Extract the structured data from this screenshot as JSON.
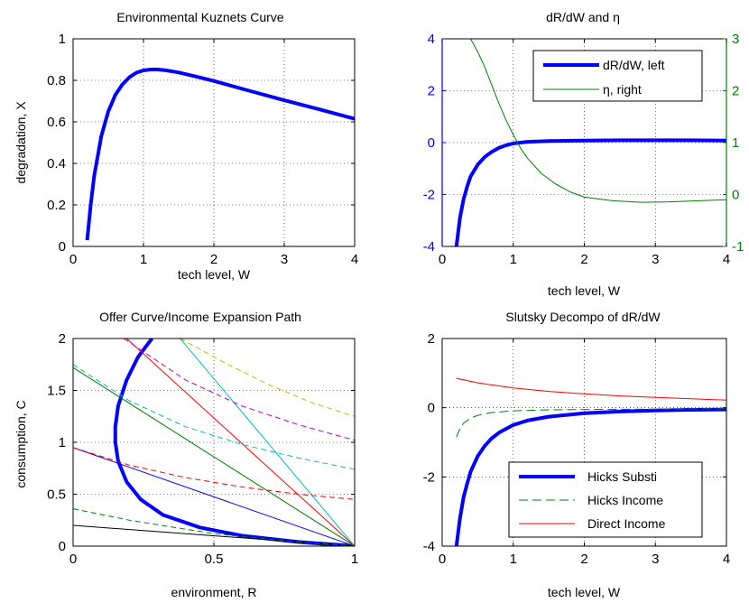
{
  "chart_data": [
    {
      "type": "line",
      "title": "Environmental Kuznets Curve",
      "xlabel": "tech level, W",
      "ylabel": "degradation, X",
      "xlim": [
        0,
        4
      ],
      "ylim": [
        0,
        1
      ],
      "xticks": [
        "0",
        "1",
        "2",
        "3",
        "4"
      ],
      "yticks": [
        "0",
        "0.2",
        "0.4",
        "0.6",
        "0.8",
        "1"
      ],
      "grid": true,
      "series": [
        {
          "color": "#0000ff",
          "width": 4,
          "dash": "",
          "x": [
            0.2,
            0.25,
            0.3,
            0.4,
            0.5,
            0.6,
            0.7,
            0.8,
            0.9,
            1.0,
            1.1,
            1.2,
            1.3,
            1.5,
            1.7,
            2.0,
            2.5,
            3.0,
            3.5,
            4.0
          ],
          "y": [
            0.03,
            0.2,
            0.34,
            0.53,
            0.65,
            0.73,
            0.78,
            0.815,
            0.837,
            0.848,
            0.852,
            0.852,
            0.849,
            0.838,
            0.822,
            0.797,
            0.75,
            0.704,
            0.66,
            0.615
          ]
        }
      ]
    },
    {
      "type": "line",
      "title": "dR/dW and η",
      "xlabel": "tech level, W",
      "xlim": [
        0,
        4
      ],
      "ylim": [
        -4,
        4
      ],
      "y2lim": [
        -1,
        3
      ],
      "xticks": [
        "0",
        "1",
        "2",
        "3",
        "4"
      ],
      "yticks": [
        "-4",
        "-2",
        "0",
        "2",
        "4"
      ],
      "y2ticks": [
        "-1",
        "0",
        "1",
        "2",
        "3"
      ],
      "y1color": "#0000ff",
      "y2color": "#008000",
      "grid": true,
      "legend": {
        "position": "top-right",
        "entries": [
          {
            "label": "dR/dW, left",
            "color": "#0000ff",
            "width": 4,
            "dash": ""
          },
          {
            "label": "η, right",
            "color": "#008000",
            "width": 1,
            "dash": ""
          }
        ]
      },
      "series": [
        {
          "name": "dR/dW, left",
          "axis": "left",
          "color": "#0000ff",
          "width": 4,
          "dash": "",
          "x": [
            0.2,
            0.25,
            0.3,
            0.35,
            0.4,
            0.5,
            0.6,
            0.7,
            0.8,
            0.9,
            1.0,
            1.2,
            1.5,
            2.0,
            2.5,
            3.0,
            3.5,
            4.0
          ],
          "y": [
            -4.0,
            -2.9,
            -2.2,
            -1.7,
            -1.3,
            -0.85,
            -0.55,
            -0.35,
            -0.2,
            -0.1,
            -0.03,
            0.03,
            0.06,
            0.08,
            0.09,
            0.09,
            0.09,
            0.08
          ]
        },
        {
          "name": "η, right",
          "axis": "right",
          "color": "#008000",
          "width": 1,
          "dash": "",
          "x": [
            0.4,
            0.5,
            0.6,
            0.7,
            0.8,
            0.9,
            1.0,
            1.1,
            1.2,
            1.4,
            1.6,
            1.8,
            2.0,
            2.4,
            2.8,
            3.2,
            3.6,
            4.0
          ],
          "y": [
            3.0,
            2.75,
            2.45,
            2.1,
            1.75,
            1.43,
            1.15,
            0.9,
            0.7,
            0.4,
            0.2,
            0.05,
            -0.05,
            -0.12,
            -0.15,
            -0.14,
            -0.12,
            -0.1
          ]
        }
      ]
    },
    {
      "type": "line",
      "title": "Offer Curve/Income Expansion Path",
      "xlabel": "environment, R",
      "ylabel": "consumption, C",
      "xlim": [
        0,
        1
      ],
      "ylim": [
        0,
        2
      ],
      "xticks": [
        "0",
        "0.5",
        "1"
      ],
      "yticks": [
        "0",
        "0.5",
        "1",
        "1.5",
        "2"
      ],
      "grid": true,
      "series": [
        {
          "color": "#0000ff",
          "width": 4,
          "dash": "",
          "x": [
            1.0,
            0.8,
            0.6,
            0.45,
            0.32,
            0.24,
            0.19,
            0.16,
            0.15,
            0.15,
            0.16,
            0.19,
            0.23,
            0.28
          ],
          "y": [
            0.0,
            0.04,
            0.1,
            0.18,
            0.3,
            0.45,
            0.62,
            0.82,
            1.0,
            1.15,
            1.35,
            1.6,
            1.82,
            2.0
          ]
        },
        {
          "color": "#000000",
          "width": 1,
          "dash": "",
          "x": [
            0,
            1
          ],
          "y": [
            0.2,
            0
          ]
        },
        {
          "color": "#0000ff",
          "width": 1,
          "dash": "",
          "x": [
            0,
            1
          ],
          "y": [
            0.95,
            0
          ]
        },
        {
          "color": "#008000",
          "width": 1,
          "dash": "",
          "x": [
            0,
            1
          ],
          "y": [
            1.72,
            0
          ]
        },
        {
          "color": "#ff0000",
          "width": 1,
          "dash": "",
          "x": [
            0.19,
            1
          ],
          "y": [
            2.0,
            0
          ]
        },
        {
          "color": "#00bfbf",
          "width": 1,
          "dash": "",
          "x": [
            0.38,
            1
          ],
          "y": [
            2.0,
            0
          ]
        },
        {
          "color": "#008000",
          "width": 1,
          "dash": "6,4",
          "x": [
            0.0,
            0.2,
            0.5,
            0.8,
            1.0
          ],
          "y": [
            0.36,
            0.25,
            0.12,
            0.04,
            0.0
          ]
        },
        {
          "color": "#ff0000",
          "width": 1,
          "dash": "6,4",
          "x": [
            0.0,
            0.2,
            0.4,
            0.6,
            0.8,
            1.0
          ],
          "y": [
            0.95,
            0.78,
            0.66,
            0.57,
            0.5,
            0.45
          ]
        },
        {
          "color": "#00bfbf",
          "width": 1,
          "dash": "6,4",
          "x": [
            0.0,
            0.2,
            0.4,
            0.6,
            0.8,
            1.0
          ],
          "y": [
            1.75,
            1.4,
            1.15,
            0.98,
            0.85,
            0.74
          ]
        },
        {
          "color": "#bf00bf",
          "width": 1,
          "dash": "6,4",
          "x": [
            0.18,
            0.4,
            0.6,
            0.8,
            1.0
          ],
          "y": [
            2.0,
            1.6,
            1.35,
            1.17,
            1.02
          ]
        },
        {
          "color": "#bfbf00",
          "width": 1,
          "dash": "6,4",
          "x": [
            0.38,
            0.55,
            0.7,
            0.85,
            1.0
          ],
          "y": [
            2.0,
            1.75,
            1.55,
            1.38,
            1.25
          ]
        }
      ]
    },
    {
      "type": "line",
      "title": "Slutsky Decompo of dR/dW",
      "xlabel": "tech level, W",
      "xlim": [
        0,
        4
      ],
      "ylim": [
        -4,
        2
      ],
      "xticks": [
        "0",
        "1",
        "2",
        "3",
        "4"
      ],
      "yticks": [
        "-4",
        "-2",
        "0",
        "2"
      ],
      "grid": true,
      "legend": {
        "position": "bottom-right",
        "entries": [
          {
            "label": "Hicks Substi",
            "color": "#0000ff",
            "width": 4,
            "dash": ""
          },
          {
            "label": "Hicks Income",
            "color": "#008000",
            "width": 1,
            "dash": "10,5"
          },
          {
            "label": "Direct Income",
            "color": "#ff0000",
            "width": 1,
            "dash": ""
          }
        ]
      },
      "series": [
        {
          "name": "Hicks Substi",
          "color": "#0000ff",
          "width": 4,
          "dash": "",
          "x": [
            0.2,
            0.25,
            0.3,
            0.35,
            0.4,
            0.5,
            0.6,
            0.7,
            0.8,
            1.0,
            1.2,
            1.5,
            2.0,
            2.5,
            3.0,
            3.5,
            4.0
          ],
          "y": [
            -4.0,
            -3.2,
            -2.6,
            -2.2,
            -1.85,
            -1.4,
            -1.1,
            -0.88,
            -0.72,
            -0.5,
            -0.37,
            -0.26,
            -0.16,
            -0.11,
            -0.08,
            -0.06,
            -0.05
          ]
        },
        {
          "name": "Hicks Income",
          "color": "#008000",
          "width": 1,
          "dash": "10,5",
          "x": [
            0.2,
            0.25,
            0.3,
            0.4,
            0.5,
            0.7,
            1.0,
            1.5,
            2.0,
            3.0,
            4.0
          ],
          "y": [
            -0.85,
            -0.6,
            -0.45,
            -0.3,
            -0.22,
            -0.14,
            -0.09,
            -0.06,
            -0.05,
            -0.04,
            -0.03
          ]
        },
        {
          "name": "Direct Income",
          "color": "#ff0000",
          "width": 1,
          "dash": "",
          "x": [
            0.2,
            0.5,
            1.0,
            1.5,
            2.0,
            2.5,
            3.0,
            3.5,
            4.0
          ],
          "y": [
            0.85,
            0.72,
            0.57,
            0.47,
            0.4,
            0.34,
            0.3,
            0.26,
            0.22
          ]
        }
      ]
    }
  ]
}
